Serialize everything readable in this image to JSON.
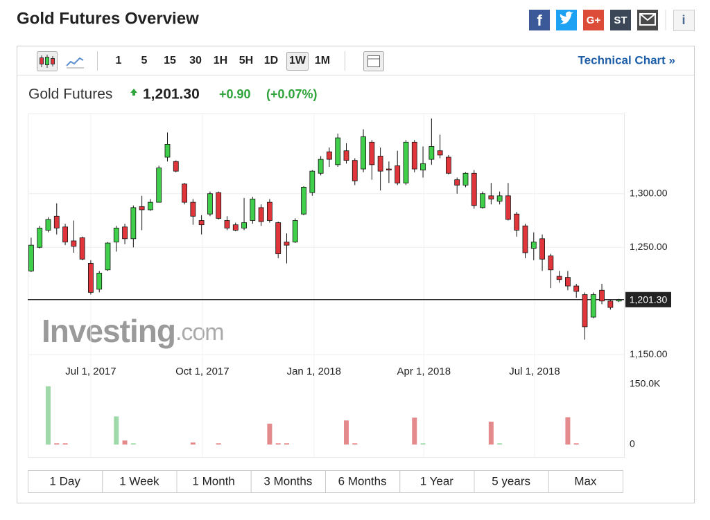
{
  "header": {
    "title": "Gold Futures Overview",
    "share": [
      "f",
      "G+",
      "ST",
      "i"
    ]
  },
  "toolbar": {
    "intervals": [
      "1",
      "5",
      "15",
      "30",
      "1H",
      "5H",
      "1D",
      "1W",
      "1M"
    ],
    "selected": 7,
    "technical_chart": "Technical Chart »"
  },
  "quote": {
    "name": "Gold Futures",
    "change": "+0.90",
    "change_pct": "(+0.07%)"
  },
  "chart_data": {
    "type": "candlestick",
    "up_color": "#3fcf4a",
    "down_color": "#e0353b",
    "volume_up_color": "#9fd9a9",
    "volume_down_color": "#e58a8c",
    "watermark": [
      "Investing",
      ".com"
    ],
    "current_price": {
      "value": 1201.3,
      "label": "1,201.30"
    },
    "ylim": [
      1145,
      1374
    ],
    "yticks": [
      {
        "value": 1150,
        "label": "1,150.00"
      },
      {
        "value": 1250,
        "label": "1,250.00"
      },
      {
        "value": 1300,
        "label": "1,300.00"
      }
    ],
    "grid": true,
    "xlim": [
      -0.4,
      69.6
    ],
    "xticks": [
      {
        "value": 7,
        "label": "Jul 1, 2017"
      },
      {
        "value": 20.1,
        "label": "Oct 1, 2017"
      },
      {
        "value": 33.2,
        "label": "Jan 1, 2018"
      },
      {
        "value": 46.1,
        "label": "Apr 1, 2018"
      },
      {
        "value": 59.1,
        "label": "Jul 1, 2018"
      }
    ],
    "vlim": [
      0,
      150000
    ],
    "vticks": [
      {
        "value": 150000,
        "label": "150.0K"
      },
      0
    ],
    "candles": [
      [
        1228,
        1259,
        1227,
        1252
      ],
      [
        1250,
        1270,
        1249,
        1268
      ],
      [
        1266,
        1278,
        1264,
        1276
      ],
      [
        1279,
        1291,
        1262,
        1268
      ],
      [
        1269,
        1272,
        1252,
        1255
      ],
      [
        1256,
        1275,
        1245,
        1251
      ],
      [
        1259,
        1260,
        1238,
        1239
      ],
      [
        1235,
        1238,
        1206,
        1208
      ],
      [
        1211,
        1228,
        1208,
        1226
      ],
      [
        1229,
        1255,
        1228,
        1254
      ],
      [
        1255,
        1270,
        1246,
        1268
      ],
      [
        1269,
        1272,
        1253,
        1258
      ],
      [
        1258,
        1289,
        1250,
        1287
      ],
      [
        1288,
        1298,
        1266,
        1285
      ],
      [
        1285,
        1295,
        1284,
        1292
      ],
      [
        1292,
        1326,
        1292,
        1324
      ],
      [
        1334,
        1357,
        1330,
        1346
      ],
      [
        1330,
        1331,
        1320,
        1321
      ],
      [
        1309,
        1310,
        1290,
        1292
      ],
      [
        1292,
        1295,
        1271,
        1279
      ],
      [
        1275,
        1280,
        1262,
        1271
      ],
      [
        1281,
        1302,
        1279,
        1300
      ],
      [
        1301,
        1302,
        1276,
        1277
      ],
      [
        1275,
        1279,
        1266,
        1268
      ],
      [
        1271,
        1273,
        1265,
        1266
      ],
      [
        1268,
        1296,
        1266,
        1273
      ],
      [
        1275,
        1297,
        1272,
        1295
      ],
      [
        1287,
        1290,
        1270,
        1274
      ],
      [
        1292,
        1295,
        1273,
        1275
      ],
      [
        1273,
        1274,
        1240,
        1244
      ],
      [
        1255,
        1263,
        1235,
        1252
      ],
      [
        1255,
        1277,
        1254,
        1275
      ],
      [
        1281,
        1307,
        1280,
        1306
      ],
      [
        1301,
        1322,
        1298,
        1321
      ],
      [
        1319,
        1335,
        1317,
        1332
      ],
      [
        1339,
        1343,
        1325,
        1332
      ],
      [
        1327,
        1356,
        1325,
        1352
      ],
      [
        1340,
        1347,
        1328,
        1331
      ],
      [
        1331,
        1333,
        1308,
        1312
      ],
      [
        1323,
        1360,
        1320,
        1353
      ],
      [
        1348,
        1350,
        1313,
        1327
      ],
      [
        1335,
        1343,
        1303,
        1321
      ],
      [
        1323,
        1330,
        1310,
        1322
      ],
      [
        1326,
        1340,
        1308,
        1310
      ],
      [
        1310,
        1350,
        1308,
        1348
      ],
      [
        1348,
        1350,
        1320,
        1323
      ],
      [
        1322,
        1344,
        1315,
        1328
      ],
      [
        1332,
        1370,
        1327,
        1344
      ],
      [
        1340,
        1355,
        1333,
        1336
      ],
      [
        1334,
        1336,
        1318,
        1319
      ],
      [
        1313,
        1315,
        1300,
        1308
      ],
      [
        1308,
        1320,
        1306,
        1319
      ],
      [
        1319,
        1322,
        1286,
        1289
      ],
      [
        1287,
        1302,
        1286,
        1300
      ],
      [
        1298,
        1310,
        1290,
        1295
      ],
      [
        1293,
        1302,
        1290,
        1298
      ],
      [
        1298,
        1310,
        1275,
        1276
      ],
      [
        1281,
        1283,
        1260,
        1266
      ],
      [
        1270,
        1272,
        1240,
        1245
      ],
      [
        1249,
        1264,
        1238,
        1255
      ],
      [
        1258,
        1262,
        1228,
        1239
      ],
      [
        1242,
        1244,
        1212,
        1229
      ],
      [
        1223,
        1228,
        1217,
        1220
      ],
      [
        1222,
        1228,
        1210,
        1214
      ],
      [
        1214,
        1216,
        1203,
        1209
      ],
      [
        1206,
        1208,
        1164,
        1176
      ],
      [
        1185,
        1208,
        1184,
        1206
      ],
      [
        1210,
        1216,
        1197,
        1200
      ],
      [
        1200,
        1201,
        1192,
        1194
      ],
      [
        1200,
        1202,
        1199,
        1201.3
      ]
    ],
    "volume": [
      null,
      null,
      145000,
      3000,
      3000,
      null,
      null,
      null,
      null,
      null,
      70000,
      10000,
      3000,
      null,
      null,
      null,
      null,
      null,
      null,
      5000,
      null,
      null,
      3000,
      null,
      null,
      null,
      null,
      null,
      52000,
      3000,
      3000,
      null,
      null,
      null,
      null,
      null,
      null,
      60000,
      3000,
      null,
      null,
      null,
      null,
      null,
      null,
      67000,
      3000,
      null,
      null,
      null,
      null,
      null,
      null,
      null,
      57000,
      3000,
      null,
      null,
      null,
      null,
      null,
      null,
      null,
      68000,
      3000,
      null,
      null,
      null,
      null,
      null
    ]
  },
  "ranges": [
    "1 Day",
    "1 Week",
    "1 Month",
    "3 Months",
    "6 Months",
    "1 Year",
    "5 years",
    "Max"
  ]
}
